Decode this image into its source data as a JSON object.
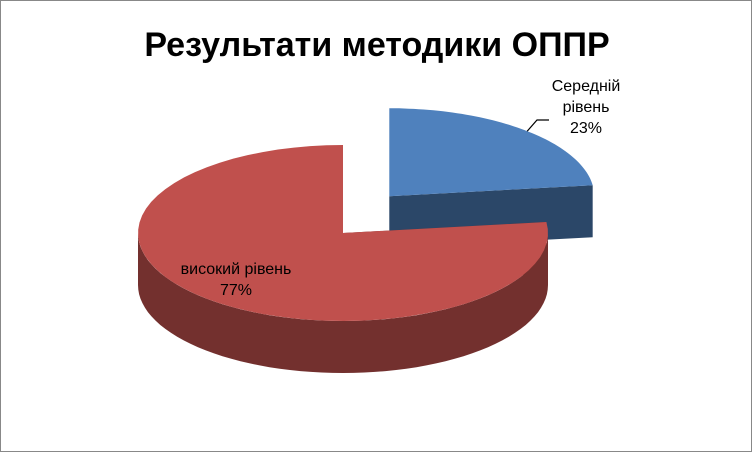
{
  "chart_data": {
    "type": "pie3d",
    "title": "Результати методики ОППР",
    "categories": [
      "Середній рівень",
      "високий рівень"
    ],
    "values": [
      23,
      77
    ],
    "value_labels": [
      "23%",
      "77%"
    ],
    "colors": [
      "#4f81bd",
      "#c0504d"
    ],
    "exploded": [
      true,
      false
    ]
  }
}
